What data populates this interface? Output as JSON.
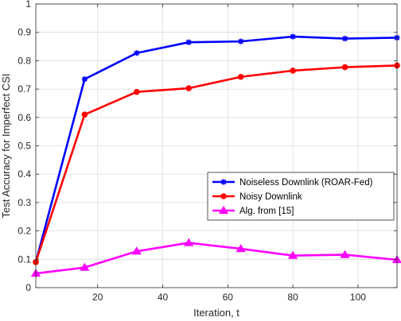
{
  "chart_data": {
    "type": "line",
    "title": "",
    "xlabel": "Iteration, t",
    "ylabel": "Test Accuracy for Imperfect CSI",
    "xlim": [
      1,
      112
    ],
    "ylim": [
      0,
      1
    ],
    "xticks": [
      20,
      40,
      60,
      80,
      100
    ],
    "yticks": [
      0,
      0.1,
      0.2,
      0.3,
      0.4,
      0.5,
      0.6,
      0.7,
      0.8,
      0.9,
      1
    ],
    "ytick_labels": [
      "0",
      "0.1",
      "0.2",
      "0.3",
      "0.4",
      "0.5",
      "0.6",
      "0.7",
      "0.8",
      "0.9",
      "1"
    ],
    "grid": true,
    "legend_position": "right-middle",
    "series": [
      {
        "name": "Noiseless Downlink (ROAR-Fed)",
        "color": "#0000ff",
        "marker": "star",
        "x": [
          1,
          16,
          32,
          48,
          64,
          80,
          96,
          112
        ],
        "y": [
          0.09,
          0.735,
          0.827,
          0.865,
          0.868,
          0.885,
          0.878,
          0.881
        ]
      },
      {
        "name": "Noisy Downlink",
        "color": "#ff0000",
        "marker": "circle",
        "x": [
          1,
          16,
          32,
          48,
          64,
          80,
          96,
          112
        ],
        "y": [
          0.09,
          0.61,
          0.69,
          0.703,
          0.743,
          0.765,
          0.777,
          0.783
        ]
      },
      {
        "name": "Alg. from [15]",
        "color": "#ff00ff",
        "marker": "triangle",
        "x": [
          1,
          16,
          32,
          48,
          64,
          80,
          96,
          112
        ],
        "y": [
          0.05,
          0.071,
          0.128,
          0.158,
          0.137,
          0.113,
          0.116,
          0.098
        ]
      }
    ]
  }
}
